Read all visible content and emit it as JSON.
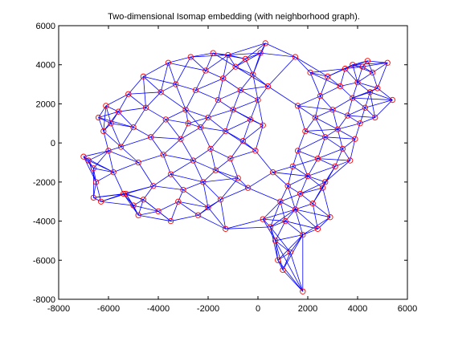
{
  "chart_data": {
    "type": "scatter",
    "title": "Two-dimensional Isomap embedding (with neighborhood graph).",
    "xlabel": "",
    "ylabel": "",
    "xlim": [
      -8000,
      6000
    ],
    "ylim": [
      -8000,
      6000
    ],
    "xticks": [
      -8000,
      -6000,
      -4000,
      -2000,
      0,
      2000,
      4000,
      6000
    ],
    "yticks": [
      -8000,
      -6000,
      -4000,
      -2000,
      0,
      2000,
      4000,
      6000
    ],
    "grid": false,
    "legend": "none",
    "edge_color": "#0000ff",
    "marker_color": "#ff0000",
    "marker": "circle-open",
    "neighbors_per_point": 5,
    "points": [
      [
        -7000,
        -700
      ],
      [
        -6800,
        -900
      ],
      [
        -6600,
        -1300
      ],
      [
        -6500,
        -2000
      ],
      [
        -6600,
        -2800
      ],
      [
        -6300,
        -3000
      ],
      [
        -6400,
        1300
      ],
      [
        -6100,
        1900
      ],
      [
        -6200,
        600
      ],
      [
        -6000,
        -400
      ],
      [
        -5800,
        -1500
      ],
      [
        -5900,
        1000
      ],
      [
        -5600,
        1600
      ],
      [
        -5500,
        -200
      ],
      [
        -5300,
        -2600
      ],
      [
        -5000,
        -3200
      ],
      [
        -4800,
        -3700
      ],
      [
        -5200,
        2500
      ],
      [
        -5000,
        800
      ],
      [
        -4800,
        -1000
      ],
      [
        -4600,
        3400
      ],
      [
        -4500,
        1800
      ],
      [
        -4300,
        300
      ],
      [
        -4200,
        -2200
      ],
      [
        -4000,
        -3500
      ],
      [
        -3900,
        2600
      ],
      [
        -3800,
        -600
      ],
      [
        -3700,
        1200
      ],
      [
        -3600,
        4100
      ],
      [
        -3500,
        -1600
      ],
      [
        -3300,
        3000
      ],
      [
        -3200,
        -3000
      ],
      [
        -3100,
        200
      ],
      [
        -3000,
        -2400
      ],
      [
        -2900,
        1700
      ],
      [
        -2700,
        4400
      ],
      [
        -2600,
        -900
      ],
      [
        -2500,
        2700
      ],
      [
        -2400,
        -3700
      ],
      [
        -2300,
        800
      ],
      [
        -2200,
        -2000
      ],
      [
        -2100,
        3700
      ],
      [
        -2000,
        1300
      ],
      [
        -1900,
        -300
      ],
      [
        -1800,
        4600
      ],
      [
        -1700,
        -1400
      ],
      [
        -1600,
        2200
      ],
      [
        -1500,
        -2900
      ],
      [
        -1400,
        3300
      ],
      [
        -1300,
        600
      ],
      [
        -1200,
        4500
      ],
      [
        -1100,
        -800
      ],
      [
        -1000,
        1700
      ],
      [
        -1300,
        -4400
      ],
      [
        -900,
        3900
      ],
      [
        -800,
        -1800
      ],
      [
        -700,
        2700
      ],
      [
        -600,
        100
      ],
      [
        -500,
        4300
      ],
      [
        -400,
        -2300
      ],
      [
        -300,
        1200
      ],
      [
        -200,
        3500
      ],
      [
        -100,
        -400
      ],
      [
        0,
        2200
      ],
      [
        100,
        4600
      ],
      [
        200,
        -3900
      ],
      [
        200,
        900
      ],
      [
        300,
        5100
      ],
      [
        400,
        2900
      ],
      [
        500,
        -4300
      ],
      [
        600,
        -1500
      ],
      [
        700,
        -5000
      ],
      [
        800,
        -6000
      ],
      [
        900,
        -3000
      ],
      [
        1000,
        -6500
      ],
      [
        1100,
        -4000
      ],
      [
        1200,
        -2200
      ],
      [
        1300,
        -5600
      ],
      [
        1400,
        -1200
      ],
      [
        1500,
        -3400
      ],
      [
        1500,
        4400
      ],
      [
        1600,
        -400
      ],
      [
        1700,
        -2600
      ],
      [
        1800,
        -7600
      ],
      [
        1800,
        -4700
      ],
      [
        1900,
        600
      ],
      [
        2000,
        -1700
      ],
      [
        2100,
        3600
      ],
      [
        2200,
        -3100
      ],
      [
        2300,
        1300
      ],
      [
        2400,
        -800
      ],
      [
        2500,
        2400
      ],
      [
        2600,
        -2300
      ],
      [
        2700,
        300
      ],
      [
        2800,
        3400
      ],
      [
        2900,
        -3800
      ],
      [
        3000,
        1700
      ],
      [
        3100,
        -1200
      ],
      [
        3200,
        700
      ],
      [
        3300,
        2900
      ],
      [
        3400,
        -300
      ],
      [
        3500,
        3800
      ],
      [
        3600,
        1400
      ],
      [
        3700,
        -900
      ],
      [
        3800,
        2300
      ],
      [
        3900,
        200
      ],
      [
        4000,
        3100
      ],
      [
        4100,
        1000
      ],
      [
        4200,
        3900
      ],
      [
        4300,
        1800
      ],
      [
        4400,
        4200
      ],
      [
        4500,
        2600
      ],
      [
        4600,
        3600
      ],
      [
        4700,
        1300
      ],
      [
        4800,
        2800
      ],
      [
        5200,
        4100
      ],
      [
        5400,
        2200
      ],
      [
        3800,
        4000
      ],
      [
        2700,
        -2000
      ],
      [
        2400,
        -4400
      ],
      [
        1600,
        1900
      ],
      [
        -5400,
        -2600
      ],
      [
        -4600,
        -2900
      ],
      [
        -3500,
        -4000
      ],
      [
        -2000,
        -3300
      ],
      [
        -2800,
        1000
      ]
    ]
  }
}
